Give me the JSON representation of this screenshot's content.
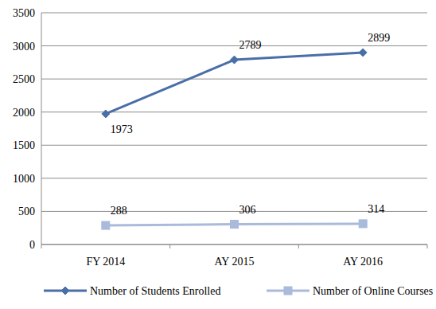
{
  "chart_data": {
    "type": "line",
    "categories": [
      "FY 2014",
      "AY 2015",
      "AY 2016"
    ],
    "series": [
      {
        "name": "Number of Students Enrolled",
        "color": "#4a6fa8",
        "marker": "diamond",
        "values": [
          1973,
          2789,
          2899
        ]
      },
      {
        "name": "Number of Online Courses",
        "color": "#a9badb",
        "marker": "square",
        "values": [
          288,
          306,
          314
        ]
      }
    ],
    "ylim": [
      0,
      3500
    ],
    "yticks": [
      0,
      500,
      1000,
      1500,
      2000,
      2500,
      3000,
      3500
    ],
    "grid": true,
    "data_labels": true,
    "legend": "bottom"
  }
}
